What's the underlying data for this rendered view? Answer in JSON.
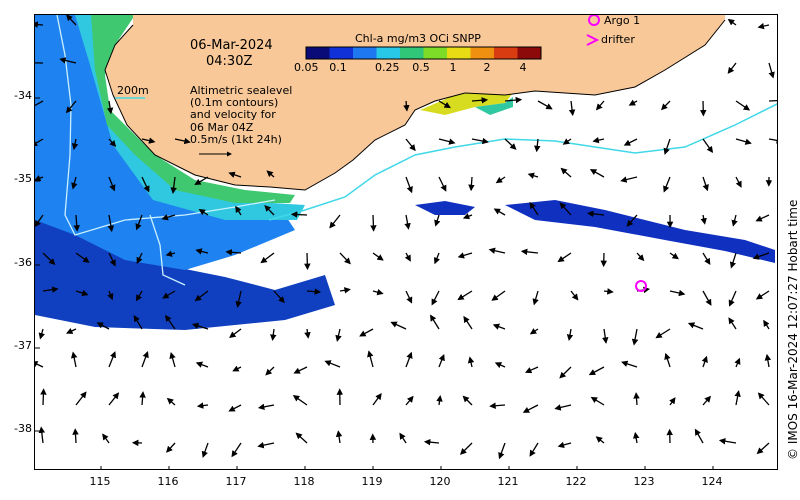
{
  "header": {
    "date": "06-Mar-2024",
    "time": "04:30Z"
  },
  "colorbar": {
    "title": "Chl-a mg/m3 OCi SNPP",
    "ticks": [
      "0.05",
      "0.1",
      "0.25",
      "0.5",
      "1",
      "2",
      "4"
    ],
    "colors": [
      "#0a0a78",
      "#1030d8",
      "#1e78f0",
      "#28c8e8",
      "#30c878",
      "#7cdc28",
      "#e8dc14",
      "#f09010",
      "#d83c10",
      "#8c0a0a"
    ]
  },
  "legend": {
    "argo_label": "Argo 1",
    "drifter_label": "drifter",
    "contour_label": "200m",
    "description_lines": [
      "Altimetric sealevel",
      "(0.1m contours)",
      "and velocity for",
      "06 Mar 04Z",
      "0.5m/s (1kt 24h)"
    ]
  },
  "axes": {
    "lat_labels": [
      "-34",
      "-35",
      "-36",
      "-37",
      "-38"
    ],
    "lon_labels": [
      "115",
      "116",
      "117",
      "118",
      "119",
      "120",
      "121",
      "122",
      "123",
      "124"
    ]
  },
  "credit": "© IMOS 16-Mar-2024 12:07:27 Hobart time",
  "colors": {
    "land": "#f8c898",
    "argo_marker": "#ff00ff",
    "contour": "#40d8e8"
  },
  "markers": [
    {
      "type": "argo",
      "lon": 123.0,
      "lat": -36.3
    }
  ]
}
